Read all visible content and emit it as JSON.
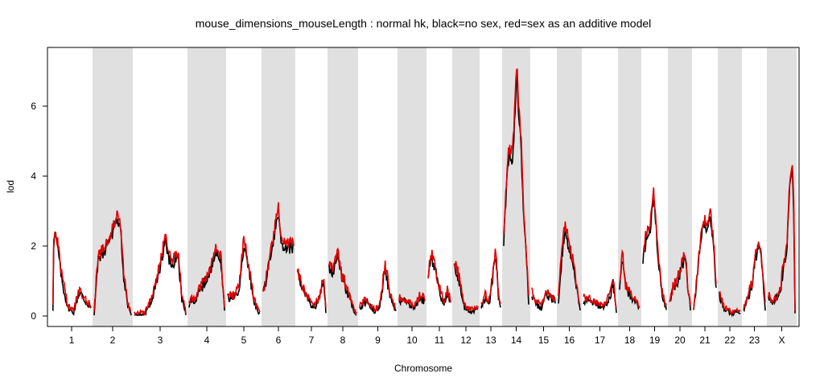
{
  "chart_data": {
    "type": "line",
    "title": "mouse_dimensions_mouseLength : normal hk, black=no sex, red=sex as an additive model",
    "xlabel": "Chromosome",
    "ylabel": "lod",
    "ylim": [
      0,
      7.6
    ],
    "y_ticks": [
      0,
      2,
      4,
      6
    ],
    "grid": false,
    "alternating_shading": true,
    "shade_color": "#e0e0e0",
    "chromosomes": [
      {
        "label": "1",
        "peaks": [
          [
            0.02,
            2.1
          ],
          [
            0.08,
            2.5
          ],
          [
            0.15,
            2.0
          ],
          [
            0.25,
            1.1
          ],
          [
            0.4,
            0.3
          ],
          [
            0.55,
            0.15
          ],
          [
            0.7,
            0.8
          ],
          [
            0.85,
            0.5
          ],
          [
            1,
            0.3
          ]
        ]
      },
      {
        "label": "2",
        "peaks": [
          [
            0,
            0.1
          ],
          [
            0.1,
            1.7
          ],
          [
            0.3,
            2.0
          ],
          [
            0.5,
            2.5
          ],
          [
            0.6,
            2.9
          ],
          [
            0.72,
            2.6
          ],
          [
            0.8,
            1.2
          ],
          [
            0.9,
            0.4
          ],
          [
            1,
            0.1
          ]
        ]
      },
      {
        "label": "3",
        "peaks": [
          [
            0,
            0.1
          ],
          [
            0.2,
            0.1
          ],
          [
            0.35,
            0.6
          ],
          [
            0.5,
            1.5
          ],
          [
            0.6,
            2.3
          ],
          [
            0.7,
            1.6
          ],
          [
            0.85,
            1.8
          ],
          [
            0.92,
            0.6
          ],
          [
            1,
            0.1
          ]
        ]
      },
      {
        "label": "4",
        "peaks": [
          [
            0,
            0.4
          ],
          [
            0.2,
            0.6
          ],
          [
            0.4,
            1.0
          ],
          [
            0.6,
            1.4
          ],
          [
            0.75,
            2.0
          ],
          [
            0.9,
            1.7
          ],
          [
            1,
            0.2
          ]
        ]
      },
      {
        "label": "5",
        "peaks": [
          [
            0,
            0.6
          ],
          [
            0.2,
            0.6
          ],
          [
            0.35,
            0.8
          ],
          [
            0.5,
            2.2
          ],
          [
            0.65,
            1.5
          ],
          [
            0.8,
            0.5
          ],
          [
            1,
            0.1
          ]
        ]
      },
      {
        "label": "6",
        "peaks": [
          [
            0,
            0.7
          ],
          [
            0.2,
            1.6
          ],
          [
            0.4,
            2.6
          ],
          [
            0.5,
            3.1
          ],
          [
            0.6,
            2.2
          ],
          [
            0.8,
            2.1
          ],
          [
            1,
            2.1
          ]
        ]
      },
      {
        "label": "7",
        "peaks": [
          [
            0,
            1.3
          ],
          [
            0.2,
            0.9
          ],
          [
            0.4,
            0.5
          ],
          [
            0.6,
            0.3
          ],
          [
            0.8,
            0.6
          ],
          [
            0.9,
            1.2
          ],
          [
            1,
            0.2
          ]
        ]
      },
      {
        "label": "8",
        "peaks": [
          [
            0,
            1.5
          ],
          [
            0.15,
            1.3
          ],
          [
            0.3,
            1.9
          ],
          [
            0.45,
            1.2
          ],
          [
            0.6,
            0.9
          ],
          [
            0.75,
            0.6
          ],
          [
            0.9,
            0.2
          ],
          [
            1,
            0.1
          ]
        ]
      },
      {
        "label": "9",
        "peaks": [
          [
            0,
            0.3
          ],
          [
            0.2,
            0.5
          ],
          [
            0.4,
            0.2
          ],
          [
            0.55,
            0.3
          ],
          [
            0.7,
            1.5
          ],
          [
            0.85,
            0.6
          ],
          [
            1,
            0.2
          ]
        ]
      },
      {
        "label": "10",
        "peaks": [
          [
            0,
            0.5
          ],
          [
            0.2,
            0.5
          ],
          [
            0.4,
            0.4
          ],
          [
            0.6,
            0.3
          ],
          [
            0.8,
            0.6
          ],
          [
            1,
            0.5
          ]
        ]
      },
      {
        "label": "11",
        "peaks": [
          [
            0,
            1.2
          ],
          [
            0.15,
            1.8
          ],
          [
            0.3,
            1.5
          ],
          [
            0.5,
            0.8
          ],
          [
            0.7,
            0.4
          ],
          [
            0.85,
            0.8
          ],
          [
            1,
            0.4
          ]
        ]
      },
      {
        "label": "12",
        "peaks": [
          [
            0,
            1.6
          ],
          [
            0.15,
            1.3
          ],
          [
            0.3,
            0.9
          ],
          [
            0.45,
            0.3
          ],
          [
            0.6,
            0.2
          ],
          [
            0.8,
            0.2
          ],
          [
            1,
            0.3
          ]
        ]
      },
      {
        "label": "13",
        "peaks": [
          [
            0,
            0.3
          ],
          [
            0.2,
            0.6
          ],
          [
            0.4,
            0.4
          ],
          [
            0.6,
            1.2
          ],
          [
            0.75,
            2.0
          ],
          [
            0.9,
            0.6
          ],
          [
            1,
            0.3
          ]
        ]
      },
      {
        "label": "14",
        "peaks": [
          [
            0,
            2.2
          ],
          [
            0.1,
            3.8
          ],
          [
            0.2,
            4.8
          ],
          [
            0.35,
            4.7
          ],
          [
            0.45,
            6.0
          ],
          [
            0.52,
            7.2
          ],
          [
            0.6,
            6.1
          ],
          [
            0.7,
            5.0
          ],
          [
            0.8,
            3.0
          ],
          [
            0.9,
            1.8
          ],
          [
            1,
            0.5
          ]
        ]
      },
      {
        "label": "15",
        "peaks": [
          [
            0,
            0.7
          ],
          [
            0.2,
            0.4
          ],
          [
            0.4,
            0.3
          ],
          [
            0.6,
            0.7
          ],
          [
            0.8,
            0.6
          ],
          [
            1,
            0.5
          ]
        ]
      },
      {
        "label": "16",
        "peaks": [
          [
            0,
            0.5
          ],
          [
            0.15,
            1.8
          ],
          [
            0.3,
            2.7
          ],
          [
            0.5,
            2.0
          ],
          [
            0.7,
            1.5
          ],
          [
            0.85,
            0.8
          ],
          [
            1,
            0.3
          ]
        ]
      },
      {
        "label": "17",
        "peaks": [
          [
            0,
            0.5
          ],
          [
            0.2,
            0.5
          ],
          [
            0.4,
            0.4
          ],
          [
            0.6,
            0.3
          ],
          [
            0.8,
            0.6
          ],
          [
            0.9,
            1.0
          ],
          [
            1,
            0.2
          ]
        ]
      },
      {
        "label": "18",
        "peaks": [
          [
            0,
            1.0
          ],
          [
            0.15,
            1.8
          ],
          [
            0.3,
            0.9
          ],
          [
            0.5,
            0.7
          ],
          [
            0.7,
            0.5
          ],
          [
            0.85,
            0.4
          ],
          [
            1,
            0.3
          ]
        ]
      },
      {
        "label": "19",
        "peaks": [
          [
            0,
            1.8
          ],
          [
            0.15,
            2.4
          ],
          [
            0.3,
            2.6
          ],
          [
            0.45,
            3.6
          ],
          [
            0.55,
            2.8
          ],
          [
            0.7,
            1.4
          ],
          [
            0.85,
            0.6
          ],
          [
            1,
            0.3
          ]
        ]
      },
      {
        "label": "20",
        "peaks": [
          [
            0,
            0.4
          ],
          [
            0.2,
            0.9
          ],
          [
            0.4,
            1.1
          ],
          [
            0.6,
            1.5
          ],
          [
            0.75,
            1.9
          ],
          [
            0.9,
            0.7
          ],
          [
            1,
            0.3
          ]
        ]
      },
      {
        "label": "21",
        "peaks": [
          [
            0,
            0.2
          ],
          [
            0.15,
            1.2
          ],
          [
            0.3,
            2.2
          ],
          [
            0.45,
            2.8
          ],
          [
            0.6,
            2.6
          ],
          [
            0.75,
            3.0
          ],
          [
            0.9,
            2.0
          ],
          [
            1,
            0.9
          ]
        ]
      },
      {
        "label": "22",
        "peaks": [
          [
            0,
            0.7
          ],
          [
            0.2,
            0.3
          ],
          [
            0.4,
            0.2
          ],
          [
            0.6,
            0.1
          ],
          [
            0.8,
            0.2
          ],
          [
            1,
            0.1
          ]
        ]
      },
      {
        "label": "23",
        "peaks": [
          [
            0,
            0.2
          ],
          [
            0.2,
            0.6
          ],
          [
            0.4,
            1.0
          ],
          [
            0.55,
            1.8
          ],
          [
            0.7,
            2.1
          ],
          [
            0.85,
            1.6
          ],
          [
            1,
            0.3
          ]
        ]
      },
      {
        "label": "X",
        "peaks": [
          [
            0,
            0.6
          ],
          [
            0.15,
            0.4
          ],
          [
            0.3,
            0.6
          ],
          [
            0.45,
            0.8
          ],
          [
            0.6,
            1.7
          ],
          [
            0.7,
            2.1
          ],
          [
            0.8,
            3.9
          ],
          [
            0.9,
            4.3
          ],
          [
            0.95,
            3.2
          ],
          [
            1,
            0.2
          ]
        ]
      }
    ],
    "series": [
      {
        "color": "#000000",
        "offset": -0.06,
        "scale": 0.96
      },
      {
        "color": "#e00000",
        "offset": 0.0,
        "scale": 1.0
      }
    ]
  }
}
